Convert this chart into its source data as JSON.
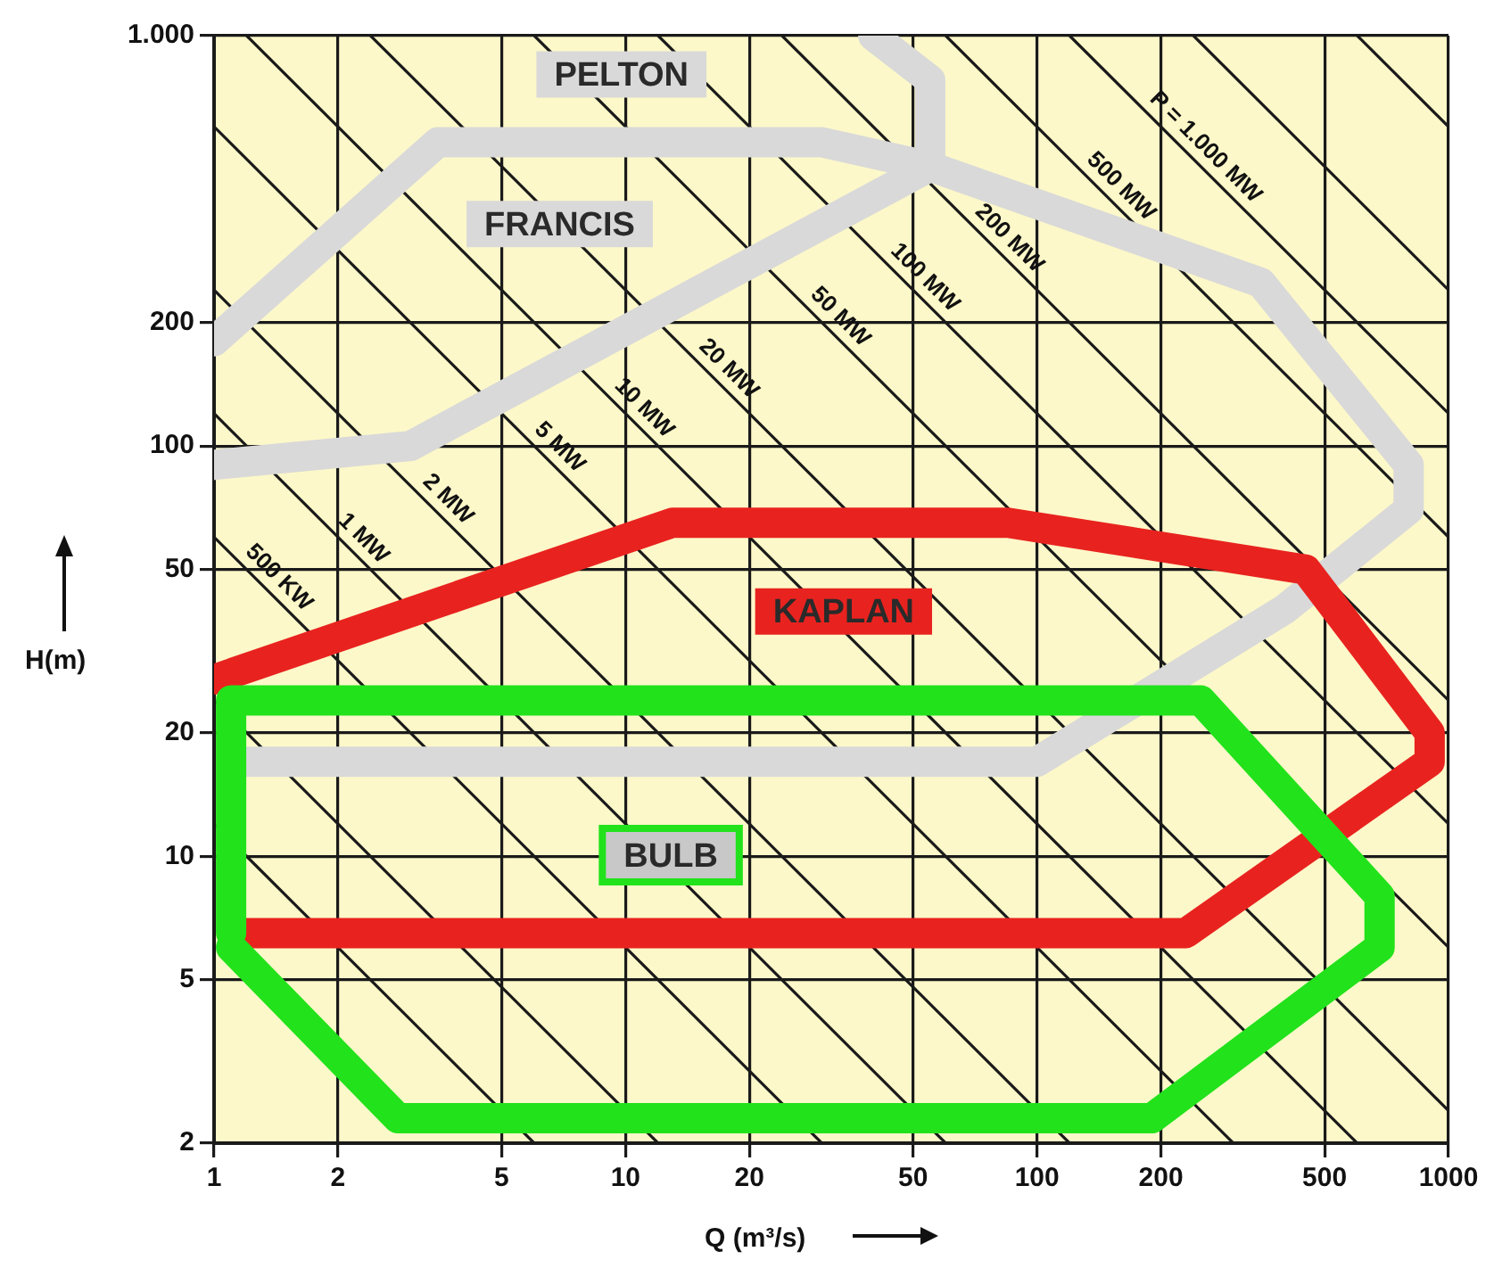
{
  "chart_data": {
    "type": "line",
    "xlabel": "Q (m³/s)",
    "ylabel": "H(m)",
    "log": "xy",
    "grid": true,
    "legend": false,
    "marker": "none",
    "line_style": "solid",
    "xlim": [
      1,
      1000
    ],
    "xticks": [
      1,
      2,
      5,
      10,
      20,
      50,
      100,
      200,
      500,
      1000
    ],
    "ylim": [
      2,
      1000
    ],
    "yticks": [
      2,
      5,
      10,
      20,
      50,
      100,
      200,
      {
        "value": 1000,
        "label": "1.000"
      }
    ],
    "series": [
      {
        "color": "#1a1a1a",
        "x": [
          1,
          6
        ],
        "values": [
          12,
          2
        ]
      },
      {
        "color": "#1a1a1a",
        "x": [
          1,
          12
        ],
        "values": [
          24,
          2
        ]
      },
      {
        "name": "500 KW",
        "color": "#1a1a1a",
        "x": [
          1,
          30
        ],
        "values": [
          60,
          2
        ]
      },
      {
        "name": "1 MW",
        "color": "#1a1a1a",
        "x": [
          1,
          60
        ],
        "values": [
          120,
          2
        ]
      },
      {
        "name": "2 MW",
        "color": "#1a1a1a",
        "x": [
          1,
          120
        ],
        "values": [
          240,
          2
        ]
      },
      {
        "name": "5 MW",
        "color": "#1a1a1a",
        "x": [
          1,
          300
        ],
        "values": [
          600,
          2
        ]
      },
      {
        "name": "10 MW",
        "color": "#1a1a1a",
        "x": [
          1.2,
          600
        ],
        "values": [
          1000,
          2
        ]
      },
      {
        "name": "20 MW",
        "color": "#1a1a1a",
        "x": [
          2.4,
          1000
        ],
        "values": [
          1000,
          2.4
        ]
      },
      {
        "name": "50 MW",
        "color": "#1a1a1a",
        "x": [
          6,
          1000
        ],
        "values": [
          1000,
          6
        ]
      },
      {
        "name": "100 MW",
        "color": "#1a1a1a",
        "x": [
          12,
          1000
        ],
        "values": [
          1000,
          12
        ]
      },
      {
        "name": "200 MW",
        "color": "#1a1a1a",
        "x": [
          24,
          1000
        ],
        "values": [
          1000,
          24
        ]
      },
      {
        "name": "500 MW",
        "color": "#1a1a1a",
        "x": [
          60,
          1000
        ],
        "values": [
          1000,
          60
        ]
      },
      {
        "name": "P = 1.000 MW",
        "color": "#1a1a1a",
        "x": [
          120,
          1000
        ],
        "values": [
          1000,
          120
        ]
      },
      {
        "color": "#1a1a1a",
        "x": [
          240,
          1000
        ],
        "values": [
          1000,
          240
        ]
      },
      {
        "color": "#1a1a1a",
        "x": [
          600,
          1000
        ],
        "values": [
          1000,
          600
        ]
      },
      {
        "name": "PELTON",
        "color": "#d9d9d9",
        "x": [
          1,
          3,
          55,
          55,
          40
        ],
        "values": [
          90,
          100,
          480,
          780,
          1000
        ]
      },
      {
        "name": "FRANCIS",
        "color": "#d9d9d9",
        "x": [
          1.2,
          100,
          400,
          800,
          800,
          350,
          55,
          30,
          3.5,
          1
        ],
        "values": [
          17,
          17,
          40,
          70,
          90,
          250,
          480,
          550,
          550,
          180
        ]
      },
      {
        "name": "KAPLAN",
        "color": "#e8231f",
        "x": [
          1,
          13,
          85,
          450,
          900,
          900,
          230,
          1.2
        ],
        "values": [
          27,
          65,
          65,
          50,
          20,
          17,
          6.5,
          6.5
        ]
      },
      {
        "name": "BULB",
        "color": "#22e21c",
        "x": [
          1.1,
          1.1,
          250,
          680,
          680,
          190,
          2.8,
          1.1
        ],
        "values": [
          6.5,
          24,
          24,
          8,
          6,
          2.3,
          2.3,
          6
        ]
      }
    ]
  }
}
